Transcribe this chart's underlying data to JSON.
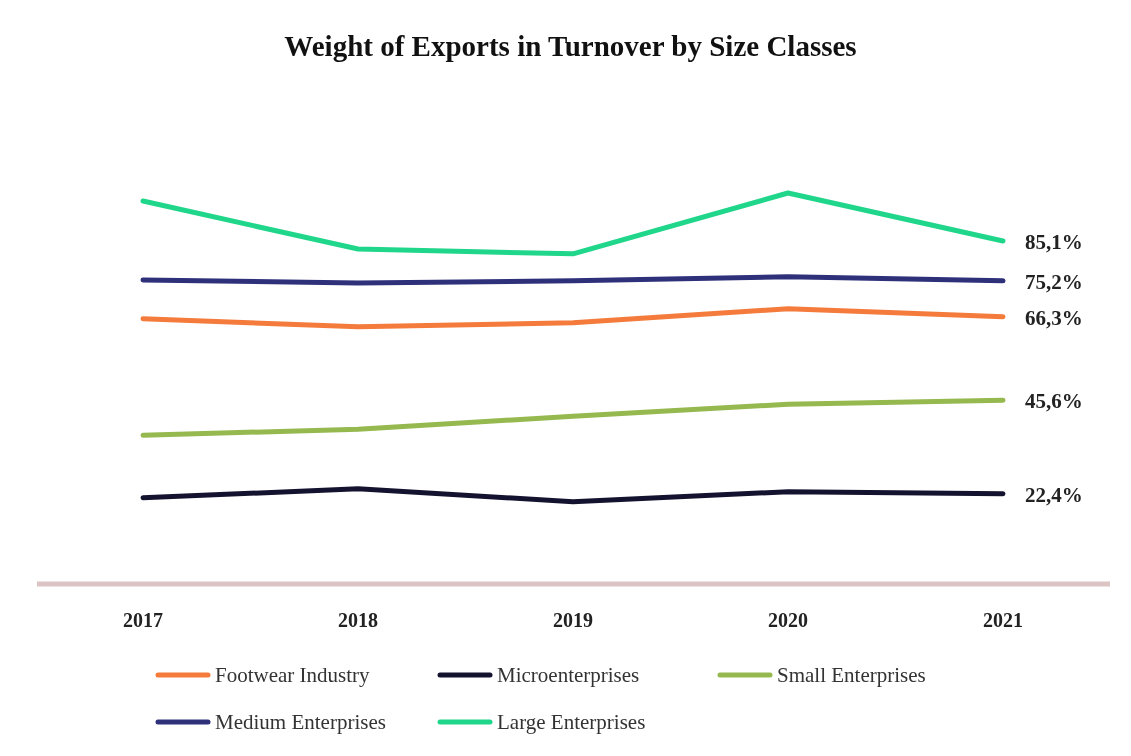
{
  "chart_data": {
    "type": "line",
    "title": "Weight of Exports in Turnover by Size Classes",
    "categories": [
      "2017",
      "2018",
      "2019",
      "2020",
      "2021"
    ],
    "tick_labels": "x",
    "legend": "bottom",
    "series": [
      {
        "name": "Footwear Industry",
        "color": "#f47b3b",
        "values": [
          65.8,
          63.8,
          64.8,
          68.3,
          66.3
        ],
        "value_labels": [
          null,
          null,
          null,
          null,
          "66,3%"
        ]
      },
      {
        "name": "Microenterprises",
        "color": "#14132f",
        "values": [
          21.4,
          23.6,
          20.4,
          22.9,
          22.4
        ],
        "value_labels": [
          null,
          null,
          null,
          null,
          "22,4%"
        ]
      },
      {
        "name": "Small Enterprises",
        "color": "#95b84f",
        "values": [
          36.9,
          38.4,
          41.6,
          44.6,
          45.6
        ],
        "value_labels": [
          null,
          null,
          null,
          null,
          "45,6%"
        ]
      },
      {
        "name": "Medium Enterprises",
        "color": "#2e307a",
        "values": [
          75.4,
          74.7,
          75.2,
          76.2,
          75.2
        ],
        "value_labels": [
          null,
          null,
          null,
          null,
          "75,2%"
        ]
      },
      {
        "name": "Large Enterprises",
        "color": "#1fd68a",
        "values": [
          95.0,
          83.1,
          81.9,
          97.0,
          85.1
        ],
        "value_labels": [
          null,
          null,
          null,
          null,
          "85,1%"
        ]
      }
    ]
  }
}
